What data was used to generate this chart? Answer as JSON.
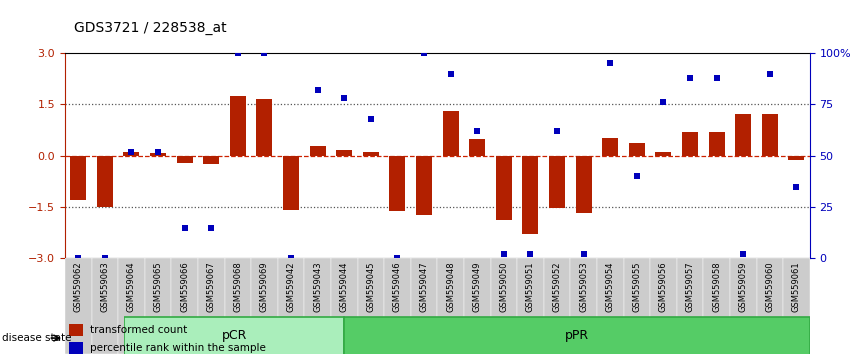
{
  "title": "GDS3721 / 228538_at",
  "categories": [
    "GSM559062",
    "GSM559063",
    "GSM559064",
    "GSM559065",
    "GSM559066",
    "GSM559067",
    "GSM559068",
    "GSM559069",
    "GSM559042",
    "GSM559043",
    "GSM559044",
    "GSM559045",
    "GSM559046",
    "GSM559047",
    "GSM559048",
    "GSM559049",
    "GSM559050",
    "GSM559051",
    "GSM559052",
    "GSM559053",
    "GSM559054",
    "GSM559055",
    "GSM559056",
    "GSM559057",
    "GSM559058",
    "GSM559059",
    "GSM559060",
    "GSM559061"
  ],
  "bar_values": [
    -1.3,
    -1.5,
    0.12,
    0.08,
    -0.2,
    -0.25,
    1.75,
    1.65,
    -1.58,
    0.28,
    0.18,
    0.12,
    -1.62,
    -1.72,
    1.32,
    0.48,
    -1.88,
    -2.28,
    -1.52,
    -1.68,
    0.52,
    0.38,
    0.12,
    0.68,
    0.68,
    1.22,
    1.22,
    -0.12
  ],
  "percentile_values": [
    0,
    0,
    52,
    52,
    15,
    15,
    100,
    100,
    0,
    82,
    78,
    68,
    0,
    100,
    90,
    62,
    2,
    2,
    62,
    2,
    95,
    40,
    76,
    88,
    88,
    2,
    90,
    35
  ],
  "pcr_count": 9,
  "ppr_count": 19,
  "ylim": [
    -3,
    3
  ],
  "yticks_left": [
    -3,
    -1.5,
    0,
    1.5,
    3
  ],
  "yticks_right": [
    0,
    25,
    50,
    75,
    100
  ],
  "bar_color": "#B22000",
  "dot_color": "#0000BB",
  "pcr_color": "#AAEEBB",
  "ppr_color": "#55CC66",
  "xticklabel_color": "#CCCCCC",
  "background_color": "#FFFFFF",
  "zero_line_color": "#CC2200",
  "dotted_line_color": "#555555",
  "legend_bar_label": "transformed count",
  "legend_dot_label": "percentile rank within the sample",
  "disease_state_label": "disease state",
  "pcr_label": "pCR",
  "ppr_label": "pPR"
}
